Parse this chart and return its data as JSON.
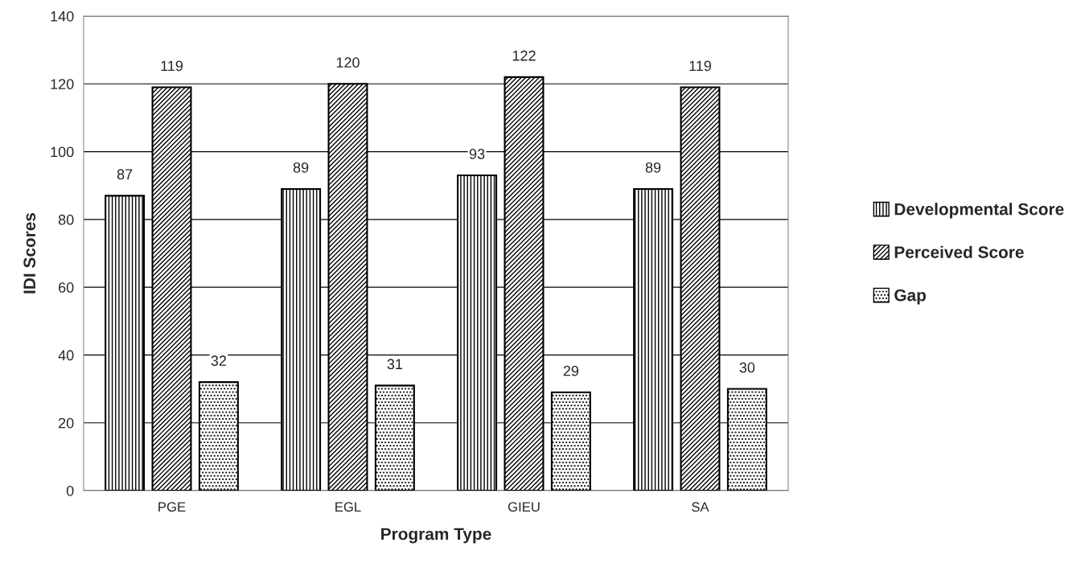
{
  "chart_data": {
    "type": "bar",
    "xlabel": "Program Type",
    "ylabel": "IDI Scores",
    "categories": [
      "PGE",
      "EGL",
      "GIEU",
      "SA"
    ],
    "series": [
      {
        "name": "Developmental Score",
        "color": "#000000",
        "values": [
          87,
          89,
          93,
          89
        ]
      },
      {
        "name": "Perceived Score",
        "color": "#000000",
        "values": [
          119,
          120,
          122,
          119
        ]
      },
      {
        "name": "Gap",
        "color": "#000000",
        "values": [
          32,
          31,
          29,
          30
        ]
      }
    ],
    "ylim": [
      0,
      140
    ],
    "yticks": [
      0,
      20,
      40,
      60,
      80,
      100,
      120,
      140
    ],
    "grid": "y",
    "legend": "right",
    "data_labels": true
  }
}
